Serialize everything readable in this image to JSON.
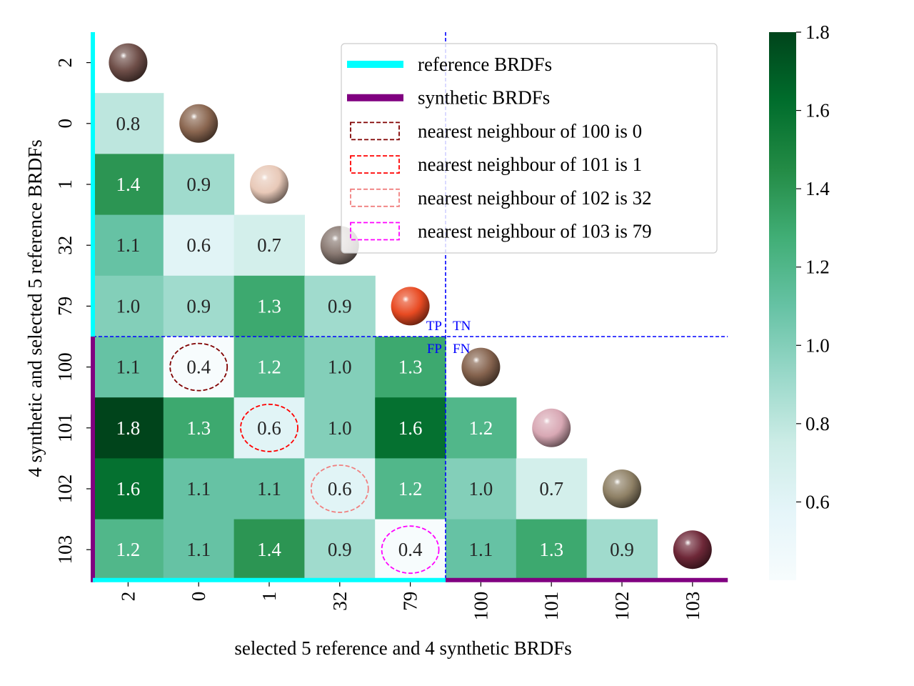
{
  "chart_data": {
    "type": "heatmap",
    "subtype": "lower-triangular distance matrix with material sphere thumbnails on the diagonal",
    "row_labels": [
      "2",
      "0",
      "1",
      "32",
      "79",
      "100",
      "101",
      "102",
      "103"
    ],
    "col_labels": [
      "2",
      "0",
      "1",
      "32",
      "79",
      "100",
      "101",
      "102",
      "103"
    ],
    "matrix": [
      [],
      [
        0.8
      ],
      [
        1.4,
        0.9
      ],
      [
        1.1,
        0.6,
        0.7
      ],
      [
        1.0,
        0.9,
        1.3,
        0.9
      ],
      [
        1.1,
        0.4,
        1.2,
        1.0,
        1.3
      ],
      [
        1.8,
        1.3,
        0.6,
        1.0,
        1.6,
        1.2
      ],
      [
        1.6,
        1.1,
        1.1,
        0.6,
        1.2,
        1.0,
        0.7
      ],
      [
        1.2,
        1.1,
        1.4,
        0.9,
        0.4,
        1.1,
        1.3,
        0.9
      ]
    ],
    "cell_labels": [
      [],
      [
        "0.8"
      ],
      [
        "1.4",
        "0.9"
      ],
      [
        "1.1",
        "0.6",
        "0.7"
      ],
      [
        "1.0",
        "0.9",
        "1.3",
        "0.9"
      ],
      [
        "1.1",
        "0.4",
        "1.2",
        "1.0",
        "1.3"
      ],
      [
        "1.8",
        "1.3",
        "0.6",
        "1.0",
        "1.6",
        "1.2"
      ],
      [
        "1.6",
        "1.1",
        "1.1",
        "0.6",
        "1.2",
        "1.0",
        "0.7"
      ],
      [
        "1.2",
        "1.1",
        "1.4",
        "0.9",
        "0.4",
        "1.1",
        "1.3",
        "0.9"
      ]
    ],
    "xlabel": "selected 5 reference and 4 synthetic BRDFs",
    "ylabel": "4 synthetic and selected 5 reference BRDFs",
    "colorbar": {
      "min": 0.4,
      "max": 1.8,
      "ticks": [
        0.6,
        0.8,
        1.0,
        1.2,
        1.4,
        1.6,
        1.8
      ],
      "tick_labels": [
        "0.6",
        "0.8",
        "1.0",
        "1.2",
        "1.4",
        "1.6",
        "1.8"
      ],
      "colormap": "BuGn",
      "stops": [
        "#f7fcfd",
        "#e5f5f9",
        "#ccece6",
        "#99d8c9",
        "#66c2a4",
        "#41ae76",
        "#238b45",
        "#006d2c",
        "#00441b"
      ]
    },
    "groups": [
      {
        "name": "reference BRDFs",
        "labels": [
          "2",
          "0",
          "1",
          "32",
          "79"
        ],
        "color": "#00ffff"
      },
      {
        "name": "synthetic BRDFs",
        "labels": [
          "100",
          "101",
          "102",
          "103"
        ],
        "color": "#800080"
      }
    ],
    "legend": {
      "position": "top-right",
      "entries": [
        {
          "label": "reference BRDFs",
          "style": "thick-line",
          "color": "#00ffff"
        },
        {
          "label": "synthetic BRDFs",
          "style": "thick-line",
          "color": "#800080"
        },
        {
          "label": "nearest neighbour of 100 is 0",
          "style": "dashed-box",
          "color": "#800000"
        },
        {
          "label": "nearest neighbour of 101 is 1",
          "style": "dashed-box",
          "color": "#ff0000"
        },
        {
          "label": "nearest neighbour of 102 is 32",
          "style": "dashed-box",
          "color": "#f08080"
        },
        {
          "label": "nearest neighbour of 103 is 79",
          "style": "dashed-box",
          "color": "#ff00ff"
        }
      ]
    },
    "highlights": [
      {
        "row": "100",
        "col": "0",
        "color": "#800000"
      },
      {
        "row": "101",
        "col": "1",
        "color": "#ff0000"
      },
      {
        "row": "102",
        "col": "32",
        "color": "#f08080"
      },
      {
        "row": "103",
        "col": "79",
        "color": "#ff00ff"
      }
    ],
    "quadrant_labels": [
      "TP",
      "TN",
      "FP",
      "FN"
    ],
    "quadrant_divider_color": "#0000ff",
    "spheres": [
      {
        "label": "2",
        "color": "#6e4e48"
      },
      {
        "label": "0",
        "color": "#8a6650"
      },
      {
        "label": "1",
        "color": "#e8c9b8"
      },
      {
        "label": "32",
        "color": "#8a7a73"
      },
      {
        "label": "79",
        "color": "#e84a22"
      },
      {
        "label": "100",
        "color": "#85634e"
      },
      {
        "label": "101",
        "color": "#d8a8b4"
      },
      {
        "label": "102",
        "color": "#8f8166"
      },
      {
        "label": "103",
        "color": "#6e2838"
      }
    ]
  }
}
